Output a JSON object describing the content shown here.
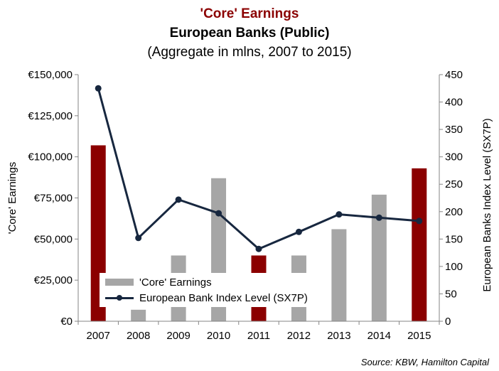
{
  "header": {
    "title": "'Core' Earnings",
    "subtitle": "European Banks (Public)",
    "note": "(Aggregate in mlns, 2007 to 2015)"
  },
  "source": "Source: KBW, Hamilton Capital",
  "chart_data": {
    "type": "bar+line",
    "categories": [
      "2007",
      "2008",
      "2009",
      "2010",
      "2011",
      "2012",
      "2013",
      "2014",
      "2015"
    ],
    "series": [
      {
        "name": "'Core' Earnings",
        "axis": "left",
        "type": "bar",
        "values": [
          107000,
          7000,
          40000,
          87000,
          40000,
          40000,
          56000,
          77000,
          93000
        ],
        "colors": [
          "#8B0000",
          "#A6A6A6",
          "#A6A6A6",
          "#A6A6A6",
          "#8B0000",
          "#A6A6A6",
          "#A6A6A6",
          "#A6A6A6",
          "#8B0000"
        ]
      },
      {
        "name": "European Bank Index Level (SX7P)",
        "axis": "right",
        "type": "line",
        "color": "#17273F",
        "values": [
          425,
          152,
          222,
          197,
          132,
          163,
          195,
          189,
          183
        ]
      }
    ],
    "left_axis": {
      "label": "'Core' Earnings",
      "ylim": [
        0,
        150000
      ],
      "ticks": [
        "€0",
        "€25,000",
        "€50,000",
        "€75,000",
        "€100,000",
        "€125,000",
        "€150,000"
      ],
      "tick_values": [
        0,
        25000,
        50000,
        75000,
        100000,
        125000,
        150000
      ]
    },
    "right_axis": {
      "label": "European Banks Index Level (SX7P)",
      "ylim": [
        0,
        450
      ],
      "ticks": [
        "0",
        "50",
        "100",
        "150",
        "200",
        "250",
        "300",
        "350",
        "400",
        "450"
      ],
      "tick_values": [
        0,
        50,
        100,
        150,
        200,
        250,
        300,
        350,
        400,
        450
      ]
    },
    "grid": false,
    "legend_position": "bottom-left inside"
  }
}
